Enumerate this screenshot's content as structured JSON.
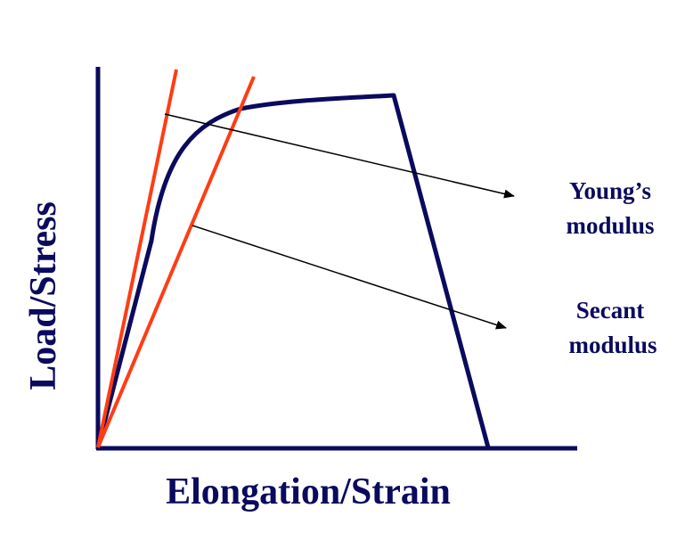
{
  "axes": {
    "xlabel": "Elongation/Strain",
    "ylabel": "Load/Stress"
  },
  "annotations": {
    "youngs_line1": "Young’s",
    "youngs_line2": "modulus",
    "secant_line1": "Secant",
    "secant_line2": "modulus"
  },
  "colors": {
    "axis": "#0a0a5e",
    "curve": "#0a0a5e",
    "modulus_lines": "#ff3c14",
    "arrows": "#000000",
    "text": "#0a0a5e"
  }
}
